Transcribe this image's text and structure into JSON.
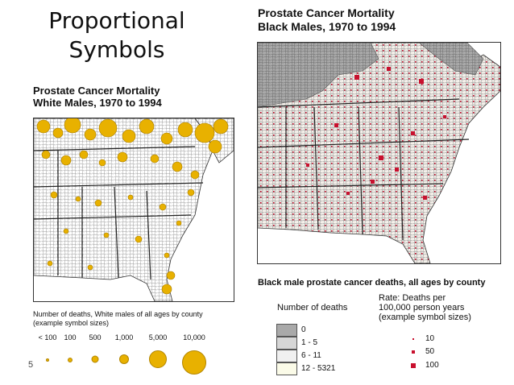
{
  "slide": {
    "title_line1": "Proportional",
    "title_line2": "Symbols",
    "page_number": "5"
  },
  "left_map": {
    "title_line1": "Prostate Cancer Mortality",
    "title_line2": "White Males, 1970 to 1994",
    "legend_line1": "Number of deaths, White males of all ages by county",
    "legend_line2": "(example symbol sizes)",
    "symbol_labels": [
      "< 100",
      "100",
      "500",
      "1,000",
      "5,000",
      "10,000"
    ],
    "symbol_color": "#e8b100"
  },
  "right_map": {
    "title_line1": "Prostate Cancer Mortality",
    "title_line2": "Black Males, 1970 to 1994",
    "legend_heading": "Black male prostate cancer deaths, all ages by county",
    "number_of_deaths_label": "Number of deaths",
    "rate_line1": "Rate: Deaths per",
    "rate_line2": "100,000 person years",
    "rate_line3": "(example symbol sizes)",
    "classes": [
      {
        "label": "0",
        "color": "#a9a9a9"
      },
      {
        "label": "1 - 5",
        "color": "#d6d6d6"
      },
      {
        "label": "6 - 11",
        "color": "#f0f0f0"
      },
      {
        "label": "12 - 5321",
        "color": "#fbfbe8"
      }
    ],
    "rate_values": [
      "10",
      "50",
      "100"
    ],
    "symbol_color": "#c8102e"
  }
}
